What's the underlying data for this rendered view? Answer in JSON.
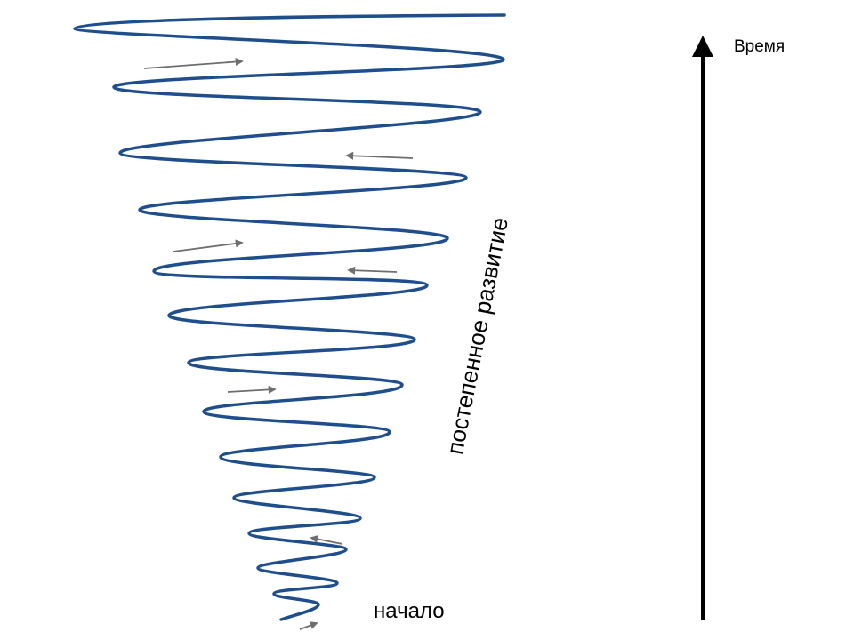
{
  "labels": {
    "time": "Время",
    "progress": "постепенное развитие",
    "start": "начало"
  },
  "colors": {
    "spiral": "#1f4e8c",
    "small_arrows": "#6e6e6e",
    "time_axis": "#000000",
    "background": "#ffffff"
  }
}
